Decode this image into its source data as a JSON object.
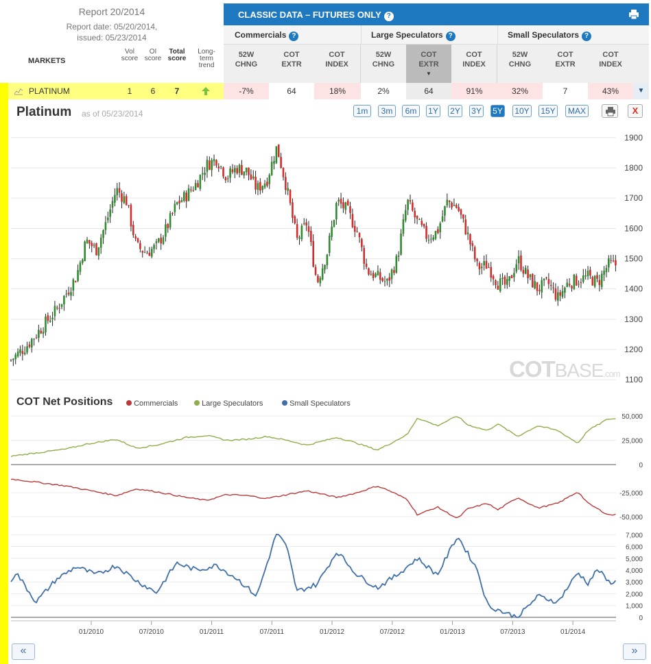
{
  "report": {
    "title": "Report 20/2014",
    "date_line": "Report date: 05/20/2014,",
    "issued_line": "issued: 05/23/2014"
  },
  "table": {
    "markets_label": "MARKETS",
    "col_vol": [
      "Vol",
      "score"
    ],
    "col_oi": [
      "OI",
      "score"
    ],
    "col_total": [
      "Total",
      "score"
    ],
    "col_trend": [
      "Long-",
      "term",
      "trend"
    ],
    "header_title": "CLASSIC DATA – FUTURES ONLY",
    "groups": [
      "Commercials",
      "Large Speculators",
      "Small Speculators"
    ],
    "sub_cols": [
      [
        "52W",
        "CHNG"
      ],
      [
        "COT",
        "EXTR"
      ],
      [
        "COT",
        "INDEX"
      ],
      [
        "52W",
        "CHNG"
      ],
      [
        "COT",
        "EXTR"
      ],
      [
        "COT",
        "INDEX"
      ],
      [
        "52W",
        "CHNG"
      ],
      [
        "COT",
        "EXTR"
      ],
      [
        "COT",
        "INDEX"
      ]
    ],
    "row": {
      "market": "PLATINUM",
      "vol": "1",
      "oi": "6",
      "total": "7",
      "values": [
        "-7%",
        "64",
        "18%",
        "2%",
        "64",
        "91%",
        "32%",
        "7",
        "43%"
      ]
    }
  },
  "chart_header": {
    "title": "Platinum",
    "as_of": "as of 05/23/2014",
    "ranges": [
      "1m",
      "3m",
      "6m",
      "1Y",
      "2Y",
      "3Y",
      "5Y",
      "10Y",
      "15Y",
      "MAX"
    ],
    "active_range": "5Y",
    "close_label": "X"
  },
  "watermark": {
    "bold": "COT",
    "light": "BASE",
    "small": ".com"
  },
  "nav": {
    "prev": "«",
    "next": "»"
  },
  "colors": {
    "up": "#2e8b2e",
    "down": "#d62b2b",
    "commercials": "#b83a3a",
    "large_speculators": "#8fae4a",
    "small_speculators": "#3f6fa8",
    "header_blue": "#1f79c1"
  },
  "chart_data": [
    {
      "type": "candlestick",
      "title": "Platinum",
      "ylim": [
        1080,
        1920
      ],
      "y_ticks": [
        1100,
        1200,
        1300,
        1400,
        1500,
        1600,
        1700,
        1800,
        1900
      ],
      "x_range": [
        "2009-05",
        "2014-05"
      ],
      "close_points": [
        [
          "2009-05",
          1150
        ],
        [
          "2009-07",
          1210
        ],
        [
          "2009-09",
          1290
        ],
        [
          "2009-10",
          1330
        ],
        [
          "2009-12",
          1440
        ],
        [
          "2010-01",
          1560
        ],
        [
          "2010-02",
          1530
        ],
        [
          "2010-03",
          1620
        ],
        [
          "2010-04",
          1730
        ],
        [
          "2010-05",
          1690
        ],
        [
          "2010-06",
          1540
        ],
        [
          "2010-07",
          1520
        ],
        [
          "2010-08",
          1540
        ],
        [
          "2010-09",
          1600
        ],
        [
          "2010-10",
          1680
        ],
        [
          "2010-11",
          1710
        ],
        [
          "2010-12",
          1750
        ],
        [
          "2011-01",
          1810
        ],
        [
          "2011-02",
          1830
        ],
        [
          "2011-03",
          1770
        ],
        [
          "2011-04",
          1800
        ],
        [
          "2011-05",
          1790
        ],
        [
          "2011-06",
          1730
        ],
        [
          "2011-07",
          1760
        ],
        [
          "2011-08",
          1870
        ],
        [
          "2011-09",
          1730
        ],
        [
          "2011-10",
          1560
        ],
        [
          "2011-11",
          1620
        ],
        [
          "2011-12",
          1420
        ],
        [
          "2012-01",
          1520
        ],
        [
          "2012-02",
          1690
        ],
        [
          "2012-03",
          1660
        ],
        [
          "2012-04",
          1590
        ],
        [
          "2012-05",
          1460
        ],
        [
          "2012-06",
          1440
        ],
        [
          "2012-07",
          1420
        ],
        [
          "2012-08",
          1500
        ],
        [
          "2012-09",
          1690
        ],
        [
          "2012-10",
          1620
        ],
        [
          "2012-11",
          1570
        ],
        [
          "2012-12",
          1590
        ],
        [
          "2013-01",
          1690
        ],
        [
          "2013-02",
          1670
        ],
        [
          "2013-03",
          1580
        ],
        [
          "2013-04",
          1470
        ],
        [
          "2013-05",
          1480
        ],
        [
          "2013-06",
          1420
        ],
        [
          "2013-07",
          1410
        ],
        [
          "2013-08",
          1500
        ],
        [
          "2013-09",
          1440
        ],
        [
          "2013-10",
          1400
        ],
        [
          "2013-11",
          1420
        ],
        [
          "2013-12",
          1370
        ],
        [
          "2014-01",
          1420
        ],
        [
          "2014-02",
          1430
        ],
        [
          "2014-03",
          1440
        ],
        [
          "2014-04",
          1420
        ],
        [
          "2014-05",
          1480
        ]
      ],
      "watermark": "COTBASE.com"
    },
    {
      "type": "line",
      "title": "COT Net Positions",
      "series": [
        {
          "name": "Large Speculators",
          "color": "#8fae4a",
          "y_ticks": [
            0,
            25000,
            50000
          ],
          "y_tick_labels": [
            "0",
            "25,000",
            "50,000"
          ],
          "points": [
            [
              "2009-05",
              8000
            ],
            [
              "2009-08",
              12000
            ],
            [
              "2009-11",
              16000
            ],
            [
              "2010-01",
              21000
            ],
            [
              "2010-04",
              26000
            ],
            [
              "2010-06",
              17000
            ],
            [
              "2010-08",
              20000
            ],
            [
              "2010-11",
              28000
            ],
            [
              "2011-01",
              30000
            ],
            [
              "2011-03",
              25000
            ],
            [
              "2011-05",
              26000
            ],
            [
              "2011-07",
              29000
            ],
            [
              "2011-09",
              25000
            ],
            [
              "2011-11",
              20000
            ],
            [
              "2012-02",
              28000
            ],
            [
              "2012-04",
              22000
            ],
            [
              "2012-06",
              15000
            ],
            [
              "2012-07",
              20000
            ],
            [
              "2012-09",
              31000
            ],
            [
              "2012-10",
              48000
            ],
            [
              "2012-12",
              40000
            ],
            [
              "2013-02",
              50000
            ],
            [
              "2013-03",
              41000
            ],
            [
              "2013-05",
              35000
            ],
            [
              "2013-06",
              42000
            ],
            [
              "2013-08",
              29000
            ],
            [
              "2013-10",
              40000
            ],
            [
              "2013-12",
              35000
            ],
            [
              "2014-02",
              22000
            ],
            [
              "2014-03",
              35000
            ],
            [
              "2014-05",
              47000
            ]
          ]
        },
        {
          "name": "Commercials",
          "color": "#b83a3a",
          "y_ticks": [
            -25000,
            -50000
          ],
          "y_tick_labels": [
            "-25,000",
            "-50,000"
          ],
          "points": [
            [
              "2009-05",
              -10000
            ],
            [
              "2009-08",
              -14000
            ],
            [
              "2009-11",
              -18000
            ],
            [
              "2010-01",
              -22000
            ],
            [
              "2010-04",
              -28000
            ],
            [
              "2010-06",
              -21000
            ],
            [
              "2010-08",
              -24000
            ],
            [
              "2010-11",
              -30000
            ],
            [
              "2011-01",
              -33000
            ],
            [
              "2011-03",
              -27000
            ],
            [
              "2011-05",
              -28000
            ],
            [
              "2011-07",
              -31000
            ],
            [
              "2011-09",
              -27000
            ],
            [
              "2011-11",
              -23000
            ],
            [
              "2012-02",
              -30000
            ],
            [
              "2012-04",
              -25000
            ],
            [
              "2012-06",
              -18000
            ],
            [
              "2012-07",
              -22000
            ],
            [
              "2012-09",
              -32000
            ],
            [
              "2012-10",
              -48000
            ],
            [
              "2012-12",
              -40000
            ],
            [
              "2013-02",
              -52000
            ],
            [
              "2013-03",
              -42000
            ],
            [
              "2013-05",
              -36000
            ],
            [
              "2013-06",
              -43000
            ],
            [
              "2013-08",
              -30000
            ],
            [
              "2013-10",
              -41000
            ],
            [
              "2013-12",
              -36000
            ],
            [
              "2014-02",
              -24000
            ],
            [
              "2014-03",
              -36000
            ],
            [
              "2014-05",
              -48000
            ]
          ]
        },
        {
          "name": "Small Speculators",
          "color": "#3f6fa8",
          "y_ticks": [
            0,
            1000,
            2000,
            3000,
            4000,
            5000,
            6000,
            7000
          ],
          "y_tick_labels": [
            "0",
            "1,000",
            "2,000",
            "3,000",
            "4,000",
            "5,000",
            "6,000",
            "7,000"
          ],
          "points": [
            [
              "2009-05",
              2500
            ],
            [
              "2009-06",
              3800
            ],
            [
              "2009-08",
              1300
            ],
            [
              "2009-10",
              3200
            ],
            [
              "2009-12",
              4300
            ],
            [
              "2010-02",
              3600
            ],
            [
              "2010-04",
              4400
            ],
            [
              "2010-06",
              3100
            ],
            [
              "2010-08",
              2100
            ],
            [
              "2010-10",
              4600
            ],
            [
              "2010-12",
              4000
            ],
            [
              "2011-02",
              4400
            ],
            [
              "2011-04",
              3300
            ],
            [
              "2011-06",
              1800
            ],
            [
              "2011-08",
              7200
            ],
            [
              "2011-09",
              5900
            ],
            [
              "2011-10",
              2200
            ],
            [
              "2011-12",
              2800
            ],
            [
              "2012-02",
              5600
            ],
            [
              "2012-04",
              3600
            ],
            [
              "2012-06",
              2500
            ],
            [
              "2012-08",
              3600
            ],
            [
              "2012-10",
              5000
            ],
            [
              "2012-12",
              3600
            ],
            [
              "2013-02",
              6900
            ],
            [
              "2013-04",
              4000
            ],
            [
              "2013-05",
              1000
            ],
            [
              "2013-07",
              300
            ],
            [
              "2013-08",
              0
            ],
            [
              "2013-10",
              1800
            ],
            [
              "2013-12",
              1300
            ],
            [
              "2014-02",
              3800
            ],
            [
              "2014-03",
              2900
            ],
            [
              "2014-04",
              4100
            ],
            [
              "2014-05",
              3000
            ]
          ]
        }
      ],
      "x_tick_labels": [
        "01/2010",
        "07/2010",
        "01/2011",
        "07/2011",
        "01/2012",
        "07/2012",
        "01/2013",
        "07/2013",
        "01/2014"
      ],
      "legend": "top-left"
    }
  ]
}
